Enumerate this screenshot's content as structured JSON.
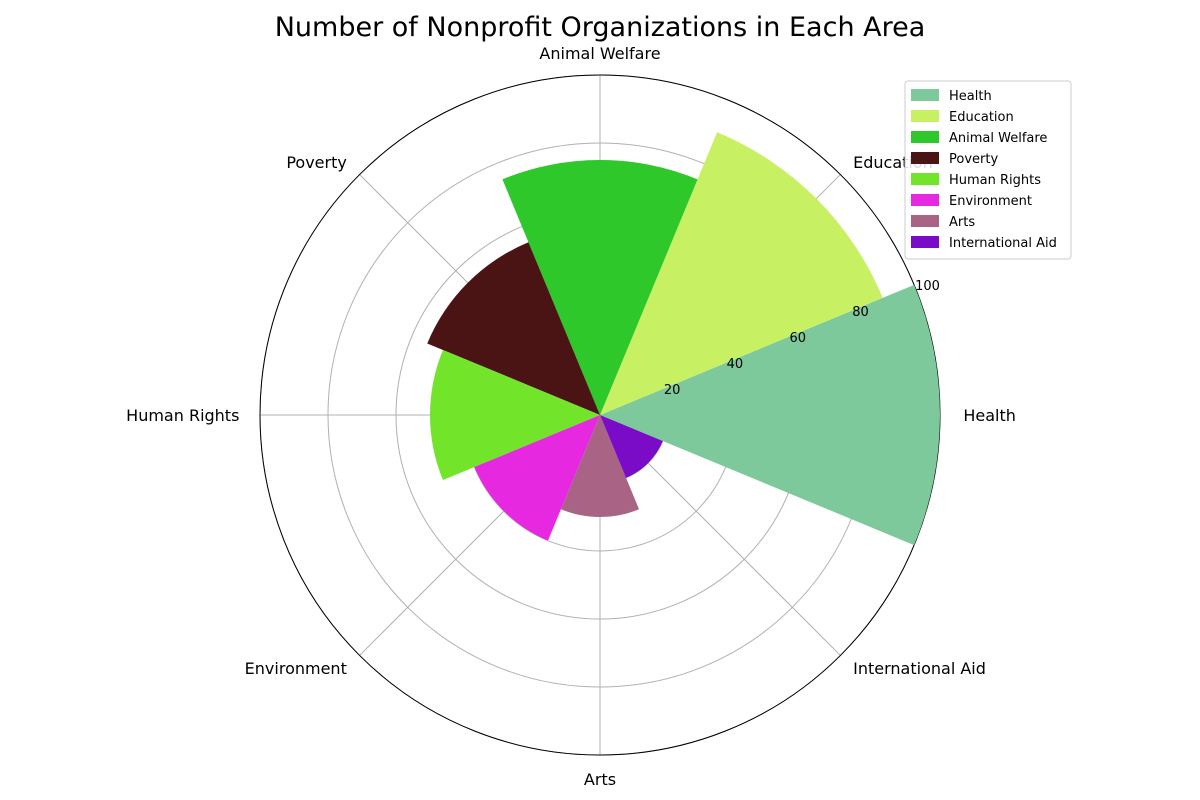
{
  "chart_data": {
    "type": "polar-bar",
    "title": "Number of Nonprofit Organizations in Each Area",
    "categories": [
      "Health",
      "Education",
      "Animal Welfare",
      "Poverty",
      "Human Rights",
      "Environment",
      "Arts",
      "International Aid"
    ],
    "values": [
      100,
      90,
      75,
      55,
      50,
      40,
      30,
      20
    ],
    "colors": [
      "#7ec99b",
      "#c7f162",
      "#2ec82a",
      "#4a1414",
      "#72e52a",
      "#e628e1",
      "#a96485",
      "#7a0cc8"
    ],
    "r_ticks": [
      "20",
      "40",
      "60",
      "80",
      "100"
    ],
    "rlim": [
      0,
      100
    ],
    "grid": true,
    "legend": {
      "position": "top-right",
      "entries": [
        "Health",
        "Education",
        "Animal Welfare",
        "Poverty",
        "Human Rights",
        "Environment",
        "Arts",
        "International Aid"
      ]
    }
  }
}
